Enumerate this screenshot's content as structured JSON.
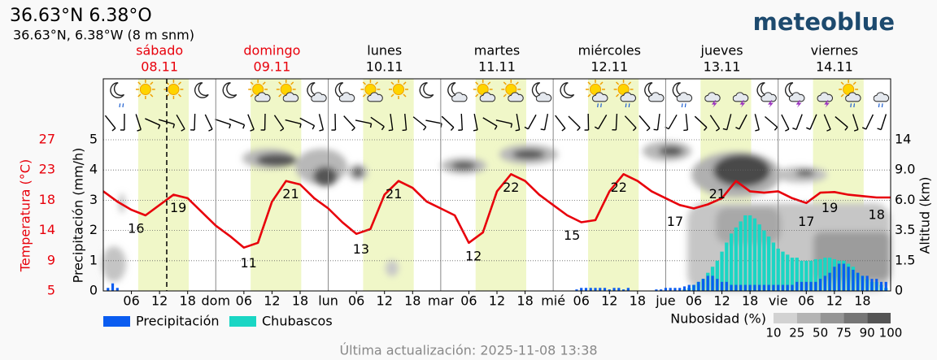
{
  "header": {
    "title": "36.63°N 6.38°O",
    "subtitle": "36.63°N, 6.38°W (8 m snm)",
    "brand": "meteoblue"
  },
  "day_headers": [
    {
      "name": "sábado",
      "date": "08.11",
      "color": "#e8000b"
    },
    {
      "name": "domingo",
      "date": "09.11",
      "color": "#e8000b"
    },
    {
      "name": "lunes",
      "date": "10.11",
      "color": "#000000"
    },
    {
      "name": "martes",
      "date": "11.11",
      "color": "#000000"
    },
    {
      "name": "miércoles",
      "date": "12.11",
      "color": "#000000"
    },
    {
      "name": "jueves",
      "date": "13.11",
      "color": "#000000"
    },
    {
      "name": "viernes",
      "date": "14.11",
      "color": "#000000"
    }
  ],
  "chart_data": [
    {
      "type": "line",
      "y_label": "Temperatura (°C)",
      "color": "#e8000b",
      "xlim": [
        0,
        168
      ],
      "x": [
        0,
        3,
        6,
        9,
        12,
        15,
        18,
        21,
        24,
        27,
        30,
        33,
        36,
        39,
        42,
        45,
        48,
        51,
        54,
        57,
        60,
        63,
        66,
        69,
        72,
        75,
        78,
        81,
        84,
        87,
        90,
        93,
        96,
        99,
        102,
        105,
        108,
        111,
        114,
        117,
        120,
        123,
        126,
        129,
        132,
        135,
        138,
        141,
        144,
        147,
        150,
        153,
        156,
        159,
        162,
        165,
        168
      ],
      "values": [
        19.5,
        18,
        16.8,
        16,
        17.5,
        19,
        18.5,
        16.5,
        14.5,
        13,
        11.3,
        12,
        18,
        21,
        20.5,
        18.5,
        17,
        15,
        13.3,
        14,
        19,
        21,
        20,
        18,
        17,
        16,
        12,
        13.5,
        19.5,
        22,
        21,
        19,
        17.5,
        16,
        15,
        15.3,
        19.5,
        22,
        21,
        19.5,
        18.5,
        17.5,
        17,
        17.6,
        18.5,
        21,
        19.5,
        19.3,
        19.5,
        18.5,
        17.8,
        19.3,
        19.4,
        19,
        18.8,
        18.6,
        18.6
      ],
      "ylim": [
        5,
        27
      ],
      "yticks": [
        5,
        {
          "value": 9.4,
          "label": "9"
        },
        {
          "value": 13.8,
          "label": "14"
        },
        {
          "value": 18.2,
          "label": "18"
        },
        {
          "value": 22.6,
          "label": "23"
        },
        27
      ],
      "extremes": [
        {
          "x": 7,
          "value": 16
        },
        {
          "x": 16,
          "value": 19
        },
        {
          "x": 31,
          "value": 11
        },
        {
          "x": 40,
          "value": 21
        },
        {
          "x": 55,
          "value": 13
        },
        {
          "x": 62,
          "value": 21
        },
        {
          "x": 79,
          "value": 12
        },
        {
          "x": 87,
          "value": 22
        },
        {
          "x": 100,
          "value": 15
        },
        {
          "x": 110,
          "value": 22
        },
        {
          "x": 122,
          "value": 17
        },
        {
          "x": 131,
          "value": 21
        },
        {
          "x": 150,
          "value": 17
        },
        {
          "x": 155,
          "value": 19
        },
        {
          "x": 165,
          "value": 18
        }
      ]
    },
    {
      "type": "bar",
      "y_label": "Precipitación (mm/h)",
      "y2_label": "Altitud (km)",
      "xlim": [
        0,
        168
      ],
      "xticks": [
        {
          "value": 6,
          "label": "06"
        },
        12,
        18,
        {
          "value": 24,
          "label": "dom"
        },
        {
          "value": 30,
          "label": "06"
        },
        {
          "value": 36,
          "label": "12"
        },
        {
          "value": 42,
          "label": "18"
        },
        {
          "value": 48,
          "label": "lun"
        },
        {
          "value": 54,
          "label": "06"
        },
        {
          "value": 60,
          "label": "12"
        },
        {
          "value": 66,
          "label": "18"
        },
        {
          "value": 72,
          "label": "mar"
        },
        {
          "value": 78,
          "label": "06"
        },
        {
          "value": 84,
          "label": "12"
        },
        {
          "value": 90,
          "label": "18"
        },
        {
          "value": 96,
          "label": "mié"
        },
        {
          "value": 102,
          "label": "06"
        },
        {
          "value": 108,
          "label": "12"
        },
        {
          "value": 114,
          "label": "18"
        },
        {
          "value": 120,
          "label": "jue"
        },
        {
          "value": 126,
          "label": "06"
        },
        {
          "value": 132,
          "label": "12"
        },
        {
          "value": 138,
          "label": "18"
        },
        {
          "value": 144,
          "label": "vie"
        },
        {
          "value": 150,
          "label": "06"
        },
        {
          "value": 156,
          "label": "12"
        },
        {
          "value": 162,
          "label": "18"
        }
      ],
      "x": [
        1,
        2,
        3,
        101,
        102,
        103,
        104,
        105,
        106,
        107,
        108,
        109,
        110,
        111,
        112,
        118,
        119,
        120,
        121,
        122,
        123,
        124,
        125,
        126,
        127,
        128,
        129,
        130,
        131,
        132,
        133,
        134,
        135,
        136,
        137,
        138,
        139,
        140,
        141,
        142,
        143,
        144,
        145,
        146,
        147,
        148,
        149,
        150,
        151,
        152,
        153,
        154,
        155,
        156,
        157,
        158,
        159,
        160,
        161,
        162,
        163,
        164,
        165,
        166,
        167
      ],
      "series": [
        {
          "name": "Chubascos",
          "color": "#1ad6c4",
          "values": [
            0,
            0,
            0,
            0,
            0,
            0,
            0,
            0,
            0,
            0,
            0,
            0,
            0,
            0,
            0,
            0,
            0,
            0,
            0,
            0,
            0,
            0.05,
            0.1,
            0.2,
            0.3,
            0.4,
            0.6,
            0.8,
            1.0,
            1.3,
            1.6,
            1.9,
            2.1,
            2.3,
            2.5,
            2.5,
            2.4,
            2.2,
            2.0,
            1.8,
            1.6,
            1.4,
            1.3,
            1.2,
            1.1,
            1.1,
            1.0,
            1.0,
            1.0,
            1.05,
            1.05,
            1.1,
            1.1,
            1.05,
            1.0,
            1.0,
            0.9,
            0.8,
            0.6,
            0.5,
            0.4,
            0.3,
            0.3,
            0.2,
            0.1
          ]
        },
        {
          "name": "Precipitación",
          "color": "#0a5cf0",
          "values": [
            0.1,
            0.25,
            0.1,
            0.05,
            0.1,
            0.1,
            0.1,
            0.1,
            0.1,
            0.1,
            0.05,
            0.1,
            0.1,
            0.05,
            0.1,
            0.05,
            0.05,
            0.1,
            0.1,
            0.1,
            0.1,
            0.15,
            0.2,
            0.2,
            0.3,
            0.4,
            0.5,
            0.5,
            0.4,
            0.3,
            0.3,
            0.2,
            0.2,
            0.2,
            0.2,
            0.2,
            0.2,
            0.2,
            0.2,
            0.2,
            0.2,
            0.2,
            0.2,
            0.2,
            0.2,
            0.3,
            0.3,
            0.3,
            0.3,
            0.3,
            0.4,
            0.5,
            0.6,
            0.8,
            0.9,
            0.9,
            0.8,
            0.7,
            0.6,
            0.5,
            0.5,
            0.4,
            0.4,
            0.3,
            0.3
          ]
        }
      ],
      "ylim": [
        0,
        5
      ],
      "yticks": [
        0,
        1,
        2,
        3,
        4,
        5
      ],
      "grid": true,
      "y2ticks": [
        0,
        1.5,
        3.5,
        {
          "value": 6,
          "label": "6.0"
        },
        {
          "value": 9,
          "label": "9.0"
        },
        14
      ]
    }
  ],
  "cloud_legend": {
    "label": "Nubosidad (%)",
    "levels": [
      10,
      25,
      50,
      75,
      90,
      100
    ],
    "colors": [
      "#d2d2d2",
      "#b4b4b4",
      "#959595",
      "#767676",
      "#555555"
    ]
  },
  "footer": "Última actualización: 2025-11-08 13:38"
}
